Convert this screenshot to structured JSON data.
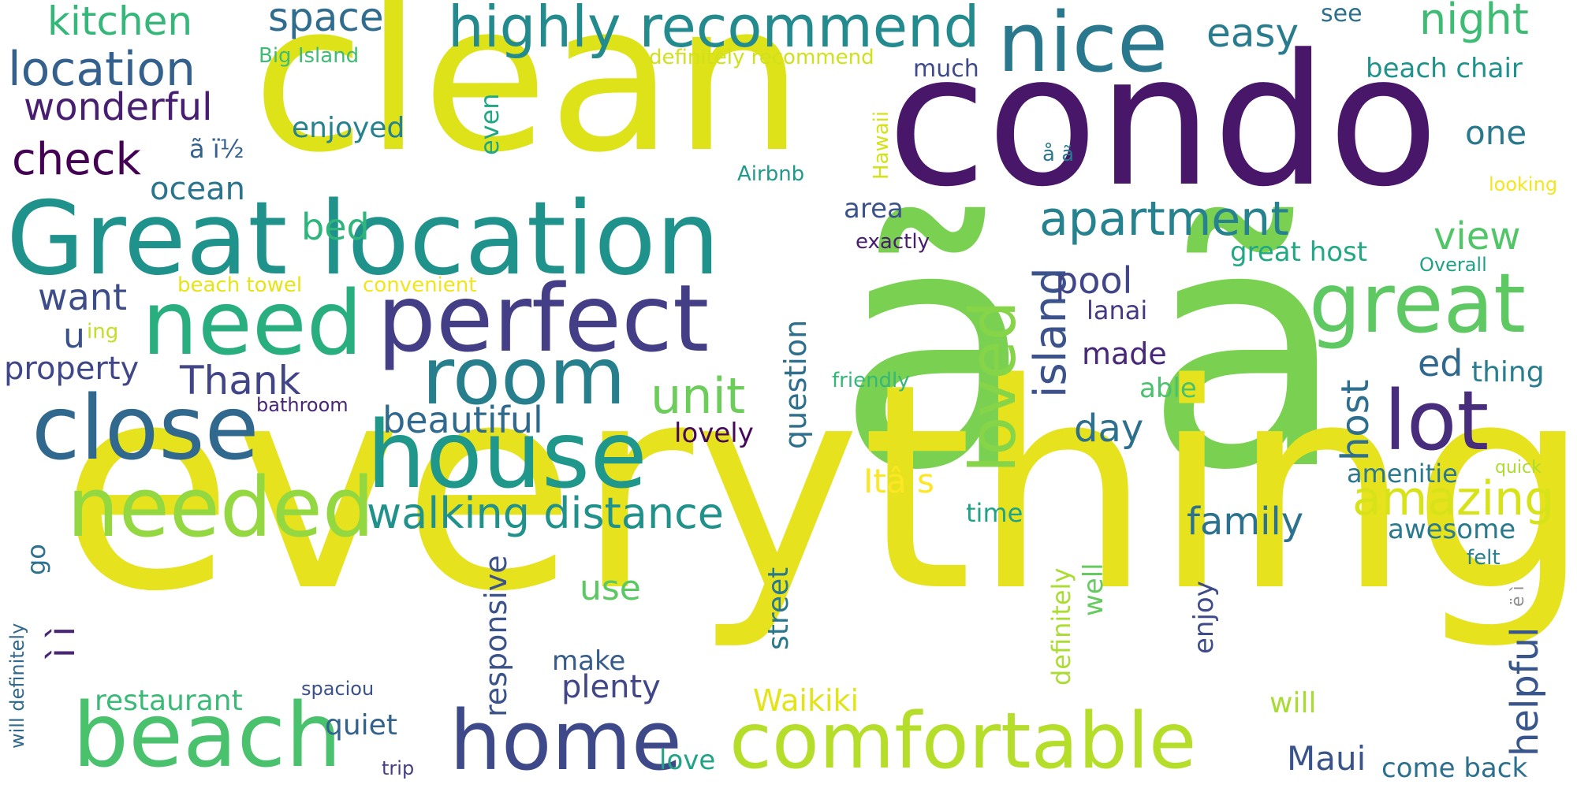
{
  "words": [
    {
      "text": "ã ã",
      "color": "#7ad151"
    },
    {
      "text": "everything",
      "color": "#e6e21e"
    },
    {
      "text": "clean",
      "color": "#dde318"
    },
    {
      "text": "condo",
      "color": "#481769"
    },
    {
      "text": "Great location",
      "color": "#20928c"
    },
    {
      "text": "perfect",
      "color": "#433e85"
    },
    {
      "text": "need",
      "color": "#29af7f"
    },
    {
      "text": "house",
      "color": "#1f978b"
    },
    {
      "text": "close",
      "color": "#31688e"
    },
    {
      "text": "room",
      "color": "#277f8e"
    },
    {
      "text": "beach",
      "color": "#4ac16d"
    },
    {
      "text": "home",
      "color": "#3e4989"
    },
    {
      "text": "comfortable",
      "color": "#b5de2b"
    },
    {
      "text": "needed",
      "color": "#93d741"
    },
    {
      "text": "nice",
      "color": "#2a788e"
    },
    {
      "text": "great",
      "color": "#5ec962"
    },
    {
      "text": "lot",
      "color": "#472d7b"
    },
    {
      "text": "highly recommend",
      "color": "#238a8d"
    },
    {
      "text": "loved",
      "color": "#86d549"
    },
    {
      "text": "location",
      "color": "#34608d"
    },
    {
      "text": "apartment",
      "color": "#26828e"
    },
    {
      "text": "unit",
      "color": "#6ccd5a"
    },
    {
      "text": "walking distance",
      "color": "#21918c"
    },
    {
      "text": "amazing",
      "color": "#d8e219"
    },
    {
      "text": "island",
      "color": "#3b528b"
    },
    {
      "text": "check",
      "color": "#440154"
    },
    {
      "text": "wonderful",
      "color": "#481f70"
    },
    {
      "text": "kitchen",
      "color": "#35b779"
    },
    {
      "text": "space",
      "color": "#2f6c8e"
    },
    {
      "text": "night",
      "color": "#3fbc73"
    },
    {
      "text": "easy",
      "color": "#287c8e"
    },
    {
      "text": "Thank",
      "color": "#414487"
    },
    {
      "text": "beautiful",
      "color": "#30698e"
    },
    {
      "text": "family",
      "color": "#2c728e"
    },
    {
      "text": "helpful",
      "color": "#39568c"
    },
    {
      "text": "Itâ s",
      "color": "#fde725"
    },
    {
      "text": "host",
      "color": "#2e6e8e"
    },
    {
      "text": "view",
      "color": "#52c569"
    },
    {
      "text": "pool",
      "color": "#404688"
    },
    {
      "text": "day",
      "color": "#2d708e"
    },
    {
      "text": "want",
      "color": "#3d4d8a"
    },
    {
      "text": "property",
      "color": "#3f4788"
    },
    {
      "text": "ocean",
      "color": "#2c738e"
    },
    {
      "text": "bed",
      "color": "#2fb47c"
    },
    {
      "text": "Maui",
      "color": "#3a538b"
    },
    {
      "text": "use",
      "color": "#5cc863"
    },
    {
      "text": "ed",
      "color": "#31688e"
    },
    {
      "text": "ì ì",
      "color": "#482576"
    },
    {
      "text": "u",
      "color": "#3b518b"
    },
    {
      "text": "made",
      "color": "#482878"
    },
    {
      "text": "area",
      "color": "#3b528b"
    },
    {
      "text": "enjoyed",
      "color": "#26828e"
    },
    {
      "text": "one",
      "color": "#2a788e"
    },
    {
      "text": "thing",
      "color": "#287d8e"
    },
    {
      "text": "plenty",
      "color": "#404688"
    },
    {
      "text": "make",
      "color": "#365c8d"
    },
    {
      "text": "lovely",
      "color": "#46085c"
    },
    {
      "text": "question",
      "color": "#2e6f8e"
    },
    {
      "text": "restaurant",
      "color": "#3aba76"
    },
    {
      "text": "quiet",
      "color": "#33638d"
    },
    {
      "text": "Waikiki",
      "color": "#e2e418"
    },
    {
      "text": "responsive",
      "color": "#3b528b"
    },
    {
      "text": "street",
      "color": "#29798e"
    },
    {
      "text": "definitely",
      "color": "#aadc32"
    },
    {
      "text": "awesome",
      "color": "#297a8e"
    },
    {
      "text": "great host",
      "color": "#22a884"
    },
    {
      "text": "beach chair",
      "color": "#20928c"
    },
    {
      "text": "much",
      "color": "#3e4a89"
    },
    {
      "text": "even",
      "color": "#22a785"
    },
    {
      "text": "go",
      "color": "#2d718e"
    },
    {
      "text": "well",
      "color": "#65cb5e"
    },
    {
      "text": "enjoy",
      "color": "#3e4a89"
    },
    {
      "text": "amenitie",
      "color": "#2a778e"
    },
    {
      "text": "time",
      "color": "#1fa287"
    },
    {
      "text": "lanai",
      "color": "#443a83"
    },
    {
      "text": "come back",
      "color": "#2d708e"
    },
    {
      "text": "love",
      "color": "#20a386"
    },
    {
      "text": "will",
      "color": "#a8db34"
    },
    {
      "text": "able",
      "color": "#4ac16d"
    },
    {
      "text": "see",
      "color": "#2d708e"
    },
    {
      "text": "ã ï½",
      "color": "#34618d"
    },
    {
      "text": "Airbnb",
      "color": "#1f9a8a"
    },
    {
      "text": "exactly",
      "color": "#481c6e"
    },
    {
      "text": "beach towel",
      "color": "#e5e419"
    },
    {
      "text": "convenient",
      "color": "#f1e51d"
    },
    {
      "text": "Big Island",
      "color": "#3fbc73"
    },
    {
      "text": "definitely recommend",
      "color": "#d0e11c"
    },
    {
      "text": "Hawaii",
      "color": "#d5e21a"
    },
    {
      "text": "å ã",
      "color": "#2a788e"
    },
    {
      "text": "looking",
      "color": "#f4e61e"
    },
    {
      "text": "Overall",
      "color": "#1fa088"
    },
    {
      "text": "friendly",
      "color": "#35b779"
    },
    {
      "text": "bathroom",
      "color": "#482576"
    },
    {
      "text": "ing",
      "color": "#c2df23"
    },
    {
      "text": "spaciou",
      "color": "#3b518b"
    },
    {
      "text": "trip",
      "color": "#433d84"
    },
    {
      "text": "will definitely",
      "color": "#31688e"
    },
    {
      "text": "quick",
      "color": "#addc30"
    },
    {
      "text": "felt",
      "color": "#27808e"
    },
    {
      "text": "ë ì",
      "color": "#8f8f8f"
    }
  ]
}
